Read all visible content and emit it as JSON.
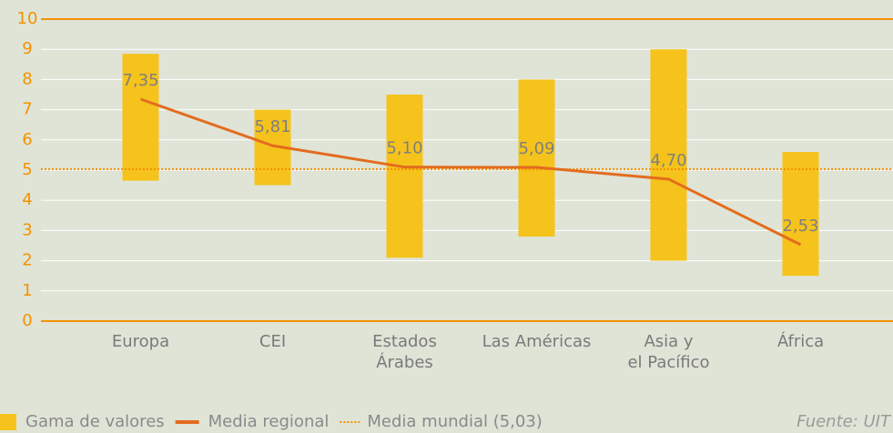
{
  "chart_data": {
    "type": "range_line",
    "categories": [
      "Europa",
      "CEI",
      "Estados\nÁrabes",
      "Las Américas",
      "Asia y\nel Pacífico",
      "África"
    ],
    "series": [
      {
        "name": "Gama de valores",
        "color": "#f5c31c",
        "low": [
          4.65,
          4.5,
          2.1,
          2.8,
          2.0,
          1.5
        ],
        "high": [
          8.85,
          7.0,
          7.5,
          8.0,
          9.0,
          5.6
        ]
      },
      {
        "name": "Media regional",
        "color": "#e36c1e",
        "values": [
          7.35,
          5.81,
          5.1,
          5.09,
          4.7,
          2.53
        ],
        "value_labels": [
          "7,35",
          "5,81",
          "5,10",
          "5,09",
          "4,70",
          "2,53"
        ]
      }
    ],
    "reference_line": {
      "name": "Media mundial (5,03)",
      "value": 5.03,
      "color": "#f39200"
    },
    "ylim": [
      0,
      10
    ],
    "yticks": [
      0,
      1,
      2,
      3,
      4,
      5,
      6,
      7,
      8,
      9,
      10
    ],
    "grid": true,
    "source": "Fuente: UIT"
  }
}
